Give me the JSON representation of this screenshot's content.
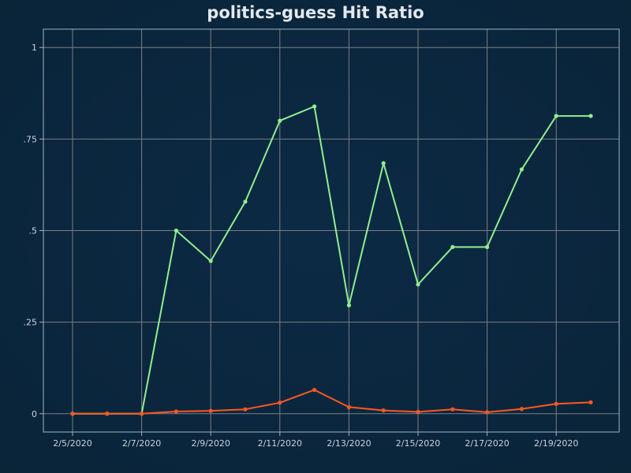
{
  "chart_data": {
    "type": "line",
    "title": "politics-guess Hit Ratio",
    "xlabel": "",
    "ylabel": "",
    "x": [
      "2/5/2020",
      "2/6/2020",
      "2/7/2020",
      "2/8/2020",
      "2/9/2020",
      "2/10/2020",
      "2/11/2020",
      "2/12/2020",
      "2/13/2020",
      "2/14/2020",
      "2/15/2020",
      "2/16/2020",
      "2/17/2020",
      "2/18/2020",
      "2/19/2020",
      "2/20/2020"
    ],
    "x_tick_labels": [
      "2/5/2020",
      "2/7/2020",
      "2/9/2020",
      "2/11/2020",
      "2/13/2020",
      "2/15/2020",
      "2/17/2020",
      "2/19/2020"
    ],
    "y_tick_values": [
      0,
      0.25,
      0.5,
      0.75,
      1
    ],
    "y_tick_labels": [
      "0",
      ".25",
      ".5",
      ".75",
      "1"
    ],
    "ylim": [
      -0.05,
      1.05
    ],
    "grid": true,
    "series": [
      {
        "color": "#90ee90",
        "values": [
          0,
          0,
          0,
          0.5,
          0.417,
          0.579,
          0.8,
          0.839,
          0.296,
          0.684,
          0.353,
          0.455,
          0.455,
          0.667,
          0.813,
          0.813
        ]
      },
      {
        "color": "#ff5722",
        "values": [
          0,
          0,
          0,
          0.006,
          0.008,
          0.012,
          0.03,
          0.065,
          0.018,
          0.009,
          0.005,
          0.012,
          0.004,
          0.013,
          0.027,
          0.031
        ]
      }
    ]
  },
  "colors": {
    "grid": "#7a7f85",
    "frame": "#9fb3c4",
    "background": "#0b2740"
  }
}
